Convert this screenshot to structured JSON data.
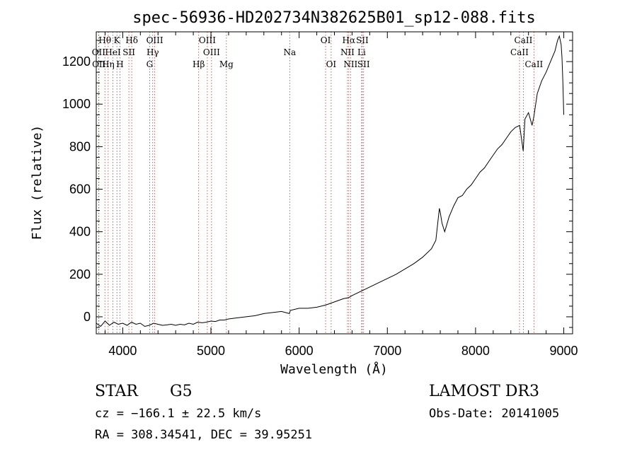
{
  "chart_data": {
    "type": "line",
    "title": "spec-56936-HD202734N382625B01_sp12-088.fits",
    "xlabel": "Wavelength (Å)",
    "ylabel": "Flux (relative)",
    "xlim": [
      3700,
      9100
    ],
    "ylim": [
      -80,
      1340
    ],
    "xticks": [
      4000,
      5000,
      6000,
      7000,
      8000,
      9000
    ],
    "yticks": [
      0,
      200,
      400,
      600,
      800,
      1000,
      1200
    ],
    "xtick_labels": [
      "4000",
      "5000",
      "6000",
      "7000",
      "8000",
      "9000"
    ],
    "ytick_labels": [
      "0",
      "200",
      "400",
      "600",
      "800",
      "1000",
      "1200"
    ],
    "series": [
      {
        "name": "spectrum",
        "x": [
          3700,
          3750,
          3800,
          3850,
          3900,
          3950,
          4000,
          4050,
          4100,
          4150,
          4200,
          4250,
          4300,
          4350,
          4400,
          4450,
          4500,
          4550,
          4600,
          4650,
          4700,
          4750,
          4800,
          4850,
          4900,
          4950,
          5000,
          5050,
          5100,
          5150,
          5200,
          5300,
          5400,
          5500,
          5600,
          5700,
          5800,
          5890,
          5900,
          6000,
          6100,
          6200,
          6300,
          6400,
          6500,
          6560,
          6600,
          6700,
          6800,
          6900,
          7000,
          7100,
          7200,
          7300,
          7400,
          7500,
          7550,
          7590,
          7600,
          7620,
          7650,
          7700,
          7750,
          7800,
          7850,
          7900,
          7950,
          8000,
          8050,
          8100,
          8150,
          8200,
          8250,
          8300,
          8350,
          8400,
          8450,
          8500,
          8540,
          8560,
          8600,
          8640,
          8660,
          8700,
          8750,
          8800,
          8850,
          8900,
          8930,
          8950,
          8970,
          8980,
          8990,
          9000
        ],
        "y": [
          -30,
          -45,
          -20,
          -40,
          -25,
          -35,
          -30,
          -40,
          -25,
          -35,
          -30,
          -45,
          -40,
          -30,
          -35,
          -40,
          -38,
          -35,
          -40,
          -35,
          -38,
          -30,
          -35,
          -25,
          -28,
          -25,
          -20,
          -22,
          -15,
          -15,
          -10,
          -5,
          0,
          5,
          15,
          20,
          25,
          15,
          30,
          40,
          40,
          45,
          55,
          70,
          85,
          90,
          100,
          120,
          140,
          160,
          180,
          200,
          225,
          250,
          280,
          320,
          360,
          510,
          490,
          440,
          400,
          470,
          520,
          560,
          570,
          600,
          620,
          650,
          680,
          700,
          730,
          760,
          790,
          810,
          840,
          870,
          890,
          900,
          780,
          930,
          960,
          900,
          940,
          1050,
          1110,
          1150,
          1200,
          1250,
          1300,
          1320,
          1280,
          1220,
          1100,
          950
        ]
      }
    ],
    "line_markers": [
      {
        "label": "Hθ",
        "wavelength": 3798,
        "row": 0
      },
      {
        "label": "OII",
        "wavelength": 3727,
        "row": 1
      },
      {
        "label": "OII",
        "wavelength": 3730,
        "row": 2
      },
      {
        "label": "K",
        "wavelength": 3934,
        "row": 0
      },
      {
        "label": "HeI",
        "wavelength": 3889,
        "row": 1
      },
      {
        "label": "Hη",
        "wavelength": 3835,
        "row": 2
      },
      {
        "label": "SII",
        "wavelength": 4070,
        "row": 1
      },
      {
        "label": "H",
        "wavelength": 3969,
        "row": 2
      },
      {
        "label": "Hδ",
        "wavelength": 4102,
        "row": 0
      },
      {
        "label": "OIII",
        "wavelength": 4363,
        "row": 0
      },
      {
        "label": "Hγ",
        "wavelength": 4340,
        "row": 1
      },
      {
        "label": "G",
        "wavelength": 4305,
        "row": 2
      },
      {
        "label": "OIII",
        "wavelength": 4959,
        "row": 0
      },
      {
        "label": "OIII",
        "wavelength": 5007,
        "row": 1
      },
      {
        "label": "Hβ",
        "wavelength": 4861,
        "row": 2
      },
      {
        "label": "Mg",
        "wavelength": 5175,
        "row": 2
      },
      {
        "label": "Na",
        "wavelength": 5893,
        "row": 1
      },
      {
        "label": "OI",
        "wavelength": 6300,
        "row": 0
      },
      {
        "label": "OI",
        "wavelength": 6363,
        "row": 2
      },
      {
        "label": "Hα",
        "wavelength": 6563,
        "row": 0
      },
      {
        "label": "SII",
        "wavelength": 6716,
        "row": 0
      },
      {
        "label": "NII",
        "wavelength": 6548,
        "row": 1
      },
      {
        "label": "Li",
        "wavelength": 6708,
        "row": 1
      },
      {
        "label": "NII",
        "wavelength": 6583,
        "row": 2
      },
      {
        "label": "SII",
        "wavelength": 6731,
        "row": 2
      },
      {
        "label": "CaII",
        "wavelength": 8542,
        "row": 0
      },
      {
        "label": "CaII",
        "wavelength": 8498,
        "row": 1
      },
      {
        "label": "CaII",
        "wavelength": 8662,
        "row": 2
      }
    ]
  },
  "info": {
    "object_class": "STAR",
    "subclass": "G5",
    "survey": "LAMOST DR3",
    "redshift_line": "cz = −166.1 ± 22.5 km/s",
    "obs_date": "Obs-Date: 20141005",
    "coords": "RA = 308.34541, DEC =  39.95251"
  }
}
